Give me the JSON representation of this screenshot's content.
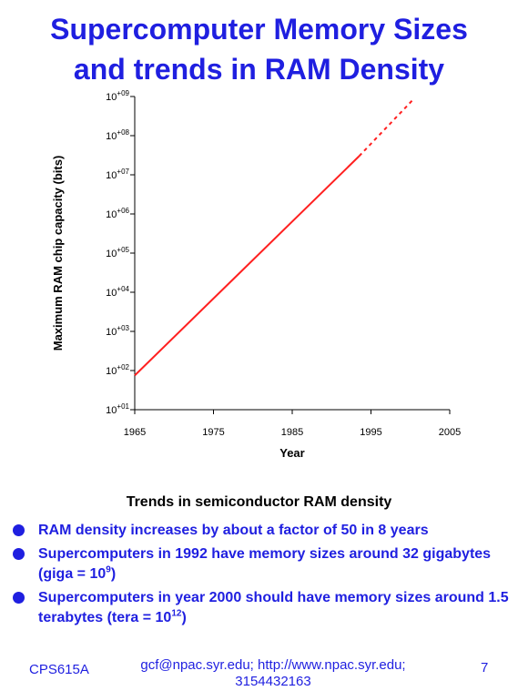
{
  "title": {
    "line1": "Supercomputer Memory Sizes",
    "line2": "and trends in RAM Density"
  },
  "colors": {
    "accent": "#1f1fe0",
    "trend_line": "#ff2020"
  },
  "chart_data": {
    "type": "line",
    "title": "",
    "xlabel": "Year",
    "ylabel": "Maximum RAM chip capacity (bits)",
    "x_ticks": [
      "1965",
      "1975",
      "1985",
      "1995",
      "2005"
    ],
    "xlim": [
      1965,
      2005
    ],
    "y_scale": "log",
    "y_ticks": [
      {
        "base": "10",
        "exp": "+01"
      },
      {
        "base": "10",
        "exp": "+02"
      },
      {
        "base": "10",
        "exp": "+03"
      },
      {
        "base": "10",
        "exp": "+04"
      },
      {
        "base": "10",
        "exp": "+05"
      },
      {
        "base": "10",
        "exp": "+06"
      },
      {
        "base": "10",
        "exp": "+07"
      },
      {
        "base": "10",
        "exp": "+08"
      },
      {
        "base": "10",
        "exp": "+09"
      }
    ],
    "ylim": [
      10,
      1000000000
    ],
    "grid": false,
    "series": [
      {
        "style": "solid",
        "x": [
          1965,
          1993.5
        ],
        "y": [
          75,
          30000000
        ]
      },
      {
        "style": "dashed",
        "x": [
          1993.5,
          2000.5
        ],
        "y": [
          30000000,
          900000000
        ]
      }
    ]
  },
  "section_heading": "Trends in semiconductor RAM density",
  "bullets": [
    {
      "text": "RAM density increases by about a factor of 50 in 8 years"
    },
    {
      "text": "Supercomputers in 1992 have memory sizes around 32 gigabytes (giga = 10",
      "sup": "9",
      "tail": ")"
    },
    {
      "text": "Supercomputers in year 2000 should have memory sizes around 1.5 terabytes (tera = 10",
      "sup": "12",
      "tail": ")"
    }
  ],
  "footer": {
    "left": "CPS615A",
    "center_line1": "gcf@npac.syr.edu; http://www.npac.syr.edu;",
    "center_line2": "3154432163",
    "page": "7"
  }
}
